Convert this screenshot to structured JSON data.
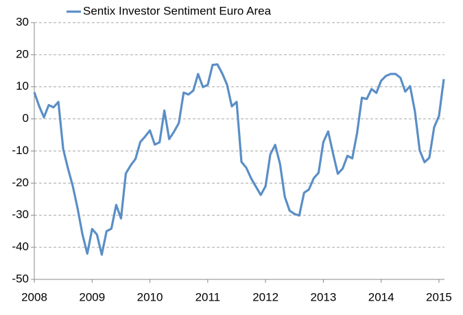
{
  "chart_data": {
    "type": "line",
    "categories": [
      "2008",
      null,
      null,
      null,
      null,
      null,
      null,
      null,
      null,
      null,
      null,
      null,
      "2009",
      null,
      null,
      null,
      null,
      null,
      null,
      null,
      null,
      null,
      null,
      null,
      "2010",
      null,
      null,
      null,
      null,
      null,
      null,
      null,
      null,
      null,
      null,
      null,
      "2011",
      null,
      null,
      null,
      null,
      null,
      null,
      null,
      null,
      null,
      null,
      null,
      "2012",
      null,
      null,
      null,
      null,
      null,
      null,
      null,
      null,
      null,
      null,
      null,
      "2013",
      null,
      null,
      null,
      null,
      null,
      null,
      null,
      null,
      null,
      null,
      null,
      "2014",
      null,
      null,
      null,
      null,
      null,
      null,
      null,
      null,
      null,
      null,
      null,
      "2015",
      null
    ],
    "series": [
      {
        "name": "Sentix Investor Sentiment Euro Area",
        "color": "#5a8ec6",
        "values": [
          8.3,
          4,
          0.5,
          4.3,
          3.6,
          5.3,
          -9.4,
          -15.5,
          -21,
          -28,
          -36,
          -42,
          -34.3,
          -36,
          -42.3,
          -35,
          -34.2,
          -26.8,
          -31,
          -17,
          -14.5,
          -12.5,
          -7.2,
          -5.5,
          -3.6,
          -8,
          -7.3,
          2.6,
          -6.3,
          -4,
          -1.3,
          8.2,
          7.6,
          8.8,
          14,
          9.9,
          10.6,
          16.8,
          17,
          14.2,
          10.7,
          3.9,
          5.3,
          -13.4,
          -15.2,
          -18.5,
          -21.1,
          -23.7,
          -21,
          -11,
          -8.1,
          -14,
          -24.3,
          -28.6,
          -29.6,
          -30.1,
          -23,
          -22,
          -18.5,
          -16.8,
          -7.2,
          -3.9,
          -10.7,
          -17.1,
          -15.5,
          -11.5,
          -12.3,
          -4.4,
          6.6,
          6.2,
          9.3,
          8.1,
          11.9,
          13.4,
          14,
          14,
          12.8,
          8.5,
          10.2,
          2.4,
          -9.8,
          -13.5,
          -12.1,
          -2.6,
          0.9,
          12.4
        ]
      }
    ],
    "ylim": [
      -50,
      30
    ],
    "yticks": [
      -50,
      -40,
      -30,
      -20,
      -10,
      0,
      10,
      20,
      30
    ],
    "grid": true,
    "legend": "top"
  }
}
